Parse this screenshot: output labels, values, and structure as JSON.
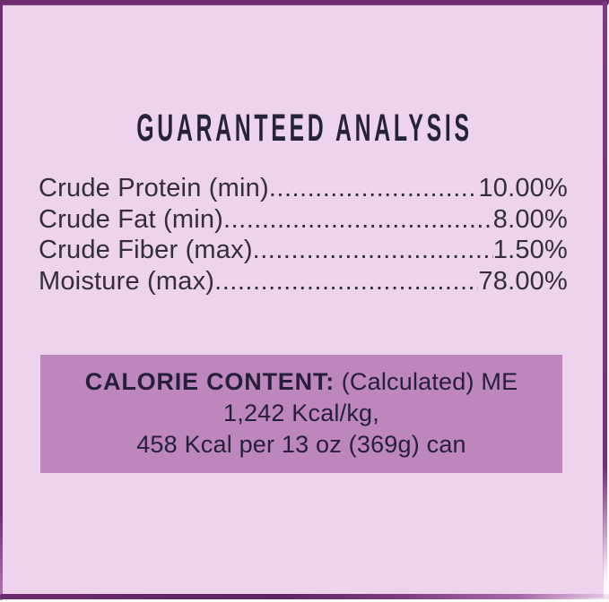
{
  "label": {
    "title": "GUARANTEED ANALYSIS",
    "analysis": {
      "rows": [
        {
          "label": "Crude Protein (min)",
          "value": "10.00%"
        },
        {
          "label": "Crude Fat (min)",
          "value": "8.00%"
        },
        {
          "label": "Crude Fiber (max)",
          "value": "1.50%"
        },
        {
          "label": "Moisture (max)",
          "value": "78.00%"
        }
      ]
    },
    "calorie_box": {
      "heading": "CALORIE CONTENT:",
      "heading_rest": " (Calculated) ME",
      "line_kcal_per_kg": "1,242 Kcal/kg,",
      "line_kcal_per_can": "458 Kcal per 13 oz (369g) can"
    },
    "colors": {
      "background_pink": "#eed3ec",
      "border_purple": "#6e2c70",
      "calorie_box_purple": "#bd86bc",
      "body_text": "#332e3a",
      "calorie_text": "#251f3a"
    }
  }
}
